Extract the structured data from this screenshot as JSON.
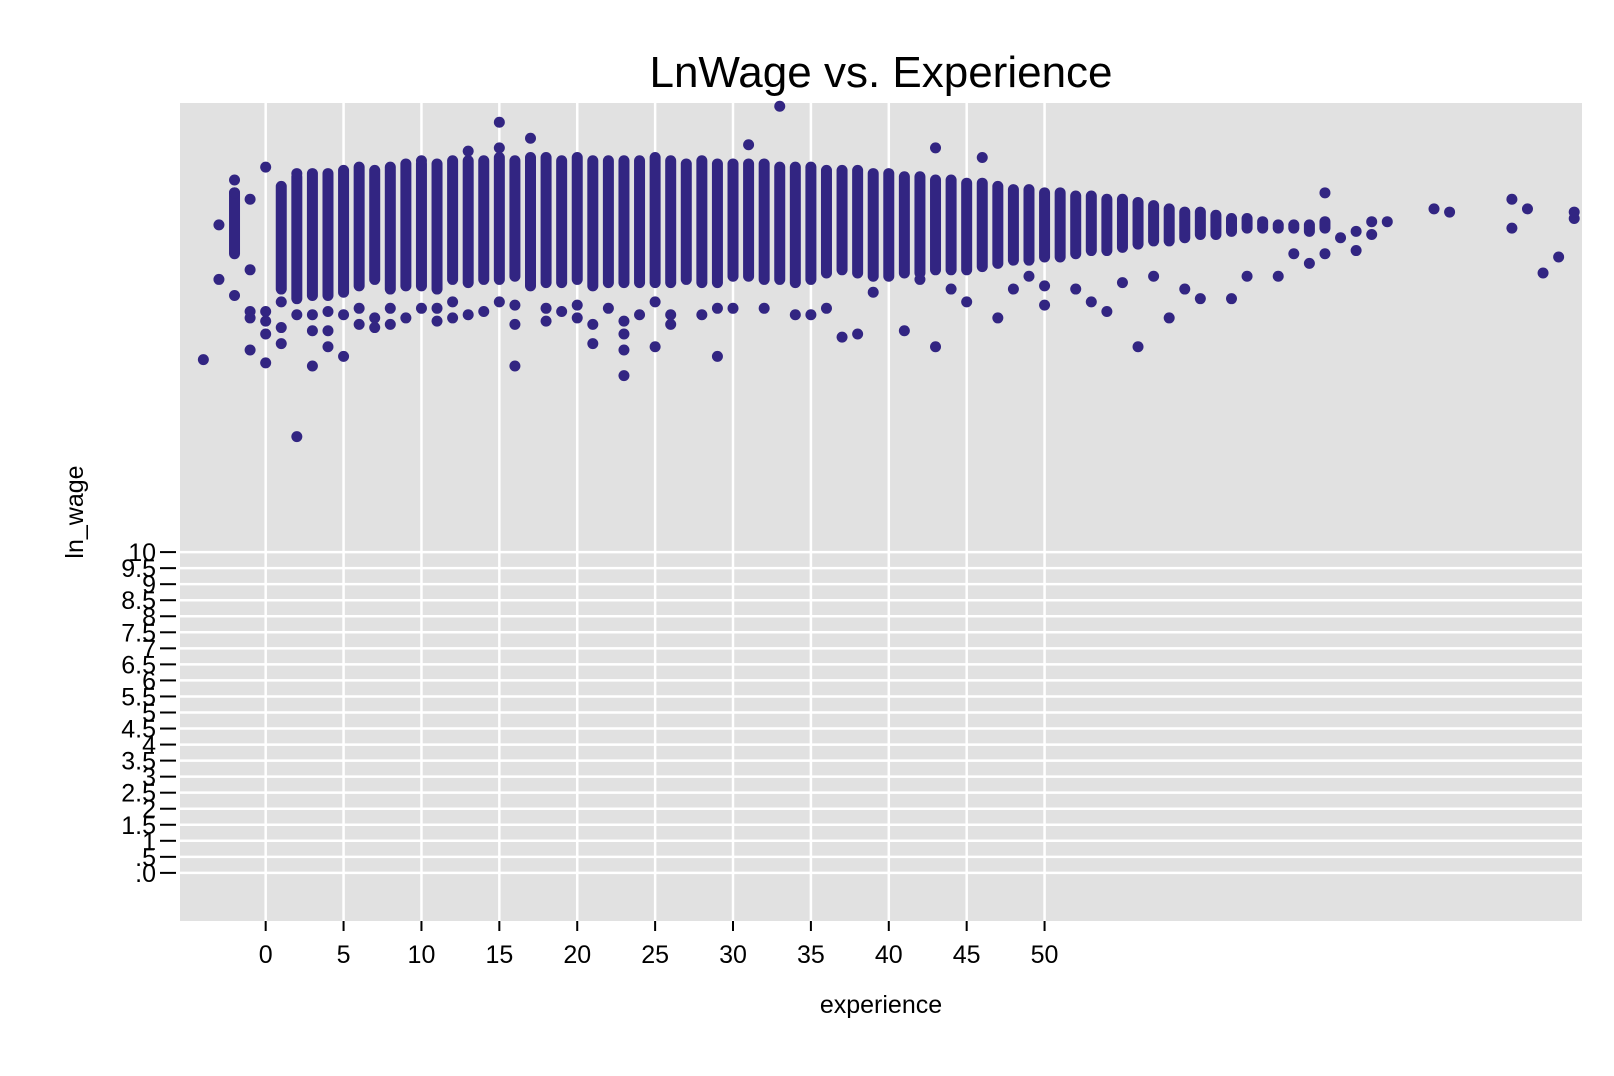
{
  "chart_data": {
    "type": "scatter",
    "title": "LnWage vs. Experience",
    "xlabel": "experience",
    "ylabel": "ln_wage",
    "xlim": [
      -5.5,
      84.5
    ],
    "ylim": [
      -1.5,
      24
    ],
    "y_axis_window": [
      0,
      10
    ],
    "xticks": [
      0,
      5,
      10,
      15,
      20,
      25,
      30,
      35,
      40,
      45,
      50
    ],
    "yticks": [
      0,
      0.5,
      1,
      1.5,
      2,
      2.5,
      3,
      3.5,
      4,
      4.5,
      5,
      5.5,
      6,
      6.5,
      7,
      7.5,
      8,
      8.5,
      9,
      9.5,
      10
    ],
    "ytick_labels": [
      ".0",
      ".5",
      "1",
      "1.5",
      "2",
      "2.5",
      "3",
      "3.5",
      "4",
      "4.5",
      "5",
      "5.5",
      "6",
      "6.5",
      "7",
      "7.5",
      "8",
      "8.5",
      "9",
      "9.5",
      "10"
    ],
    "grid": true,
    "marker_color": "#322582",
    "background_color": "#e1e1e1",
    "band_x": [
      -2,
      1,
      2,
      3,
      4,
      5,
      6,
      7,
      8,
      9,
      10,
      11,
      12,
      13,
      14,
      15,
      16,
      17,
      18,
      19,
      20,
      21,
      22,
      23,
      24,
      25,
      26,
      27,
      28,
      29,
      30,
      31,
      32,
      33,
      34,
      35,
      36,
      37,
      38,
      39,
      40,
      41,
      42,
      43,
      44,
      45,
      46,
      47,
      48,
      49,
      50,
      51,
      52,
      53,
      54,
      55,
      56,
      57,
      58,
      59,
      60,
      61,
      62,
      63,
      64,
      65,
      66,
      67,
      68
    ],
    "band_lo": [
      19.3,
      18.2,
      17.9,
      18.0,
      18.0,
      18.1,
      18.3,
      18.5,
      18.2,
      18.3,
      18.3,
      18.2,
      18.5,
      18.4,
      18.5,
      18.5,
      18.6,
      18.3,
      18.4,
      18.4,
      18.5,
      18.3,
      18.4,
      18.4,
      18.4,
      18.4,
      18.4,
      18.5,
      18.4,
      18.4,
      18.6,
      18.6,
      18.5,
      18.5,
      18.4,
      18.5,
      18.7,
      18.8,
      18.7,
      18.6,
      18.6,
      18.7,
      18.7,
      18.8,
      18.8,
      18.8,
      18.9,
      19.0,
      19.1,
      19.1,
      19.2,
      19.2,
      19.3,
      19.4,
      19.4,
      19.5,
      19.6,
      19.7,
      19.7,
      19.8,
      19.9,
      19.9,
      20.0,
      20.1,
      20.1,
      20.1,
      20.2,
      20.2,
      20.3
    ],
    "band_hi": [
      21.2,
      21.4,
      21.7,
      21.8,
      21.8,
      21.9,
      22.0,
      21.9,
      22.0,
      22.1,
      22.1,
      22.1,
      22.2,
      22.2,
      22.2,
      22.3,
      22.2,
      22.3,
      22.3,
      22.2,
      22.3,
      22.2,
      22.2,
      22.2,
      22.2,
      22.3,
      22.2,
      22.1,
      22.2,
      22.1,
      22.1,
      22.1,
      22.1,
      22.0,
      22.0,
      22.0,
      21.9,
      21.9,
      21.9,
      21.8,
      21.8,
      21.7,
      21.7,
      21.6,
      21.6,
      21.5,
      21.5,
      21.4,
      21.3,
      21.3,
      21.2,
      21.2,
      21.1,
      21.1,
      21.0,
      21.0,
      20.9,
      20.8,
      20.7,
      20.6,
      20.6,
      20.5,
      20.4,
      20.4,
      20.3,
      20.2,
      20.1,
      20.0,
      20.1
    ],
    "points": [
      [
        -4,
        16.0
      ],
      [
        -3,
        18.5
      ],
      [
        -3,
        20.2
      ],
      [
        -2,
        18.0
      ],
      [
        -2,
        21.6
      ],
      [
        -2,
        21.2
      ],
      [
        -1,
        16.3
      ],
      [
        -1,
        17.5
      ],
      [
        -1,
        21.0
      ],
      [
        -1,
        18.8
      ],
      [
        -1,
        17.3
      ],
      [
        0,
        15.9
      ],
      [
        0,
        16.8
      ],
      [
        0,
        17.2
      ],
      [
        0,
        17.5
      ],
      [
        0,
        22.0
      ],
      [
        1,
        16.5
      ],
      [
        1,
        17.0
      ],
      [
        1,
        17.8
      ],
      [
        2,
        13.6
      ],
      [
        2,
        17.4
      ],
      [
        2,
        21.8
      ],
      [
        3,
        15.8
      ],
      [
        3,
        16.9
      ],
      [
        3,
        17.4
      ],
      [
        4,
        16.4
      ],
      [
        4,
        16.9
      ],
      [
        4,
        17.5
      ],
      [
        5,
        16.1
      ],
      [
        5,
        17.4
      ],
      [
        6,
        17.1
      ],
      [
        6,
        17.6
      ],
      [
        7,
        17.0
      ],
      [
        7,
        17.3
      ],
      [
        8,
        17.1
      ],
      [
        8,
        17.6
      ],
      [
        9,
        17.3
      ],
      [
        10,
        17.6
      ],
      [
        10,
        22.2
      ],
      [
        11,
        17.2
      ],
      [
        11,
        17.6
      ],
      [
        12,
        17.3
      ],
      [
        12,
        17.8
      ],
      [
        13,
        17.4
      ],
      [
        13,
        22.5
      ],
      [
        14,
        17.5
      ],
      [
        15,
        17.8
      ],
      [
        15,
        23.4
      ],
      [
        15,
        22.6
      ],
      [
        16,
        15.8
      ],
      [
        16,
        17.1
      ],
      [
        16,
        17.7
      ],
      [
        17,
        22.9
      ],
      [
        18,
        17.2
      ],
      [
        18,
        17.6
      ],
      [
        19,
        17.5
      ],
      [
        20,
        17.3
      ],
      [
        20,
        17.7
      ],
      [
        21,
        17.1
      ],
      [
        21,
        16.5
      ],
      [
        22,
        17.6
      ],
      [
        23,
        15.5
      ],
      [
        23,
        16.3
      ],
      [
        23,
        16.8
      ],
      [
        23,
        17.2
      ],
      [
        24,
        17.4
      ],
      [
        25,
        16.4
      ],
      [
        25,
        17.8
      ],
      [
        26,
        17.1
      ],
      [
        26,
        17.4
      ],
      [
        28,
        17.4
      ],
      [
        29,
        16.1
      ],
      [
        29,
        17.6
      ],
      [
        30,
        17.6
      ],
      [
        31,
        22.7
      ],
      [
        32,
        17.6
      ],
      [
        33,
        23.9
      ],
      [
        34,
        17.4
      ],
      [
        35,
        17.4
      ],
      [
        36,
        17.6
      ],
      [
        37,
        16.7
      ],
      [
        38,
        16.8
      ],
      [
        39,
        18.1
      ],
      [
        41,
        16.9
      ],
      [
        42,
        18.5
      ],
      [
        43,
        16.4
      ],
      [
        43,
        22.6
      ],
      [
        44,
        18.2
      ],
      [
        45,
        17.8
      ],
      [
        46,
        22.3
      ],
      [
        47,
        17.3
      ],
      [
        48,
        18.2
      ],
      [
        49,
        18.6
      ],
      [
        50,
        17.7
      ],
      [
        50,
        18.3
      ],
      [
        52,
        18.2
      ],
      [
        53,
        17.8
      ],
      [
        54,
        17.5
      ],
      [
        55,
        18.4
      ],
      [
        56,
        16.4
      ],
      [
        57,
        18.6
      ],
      [
        58,
        17.3
      ],
      [
        59,
        18.2
      ],
      [
        60,
        17.9
      ],
      [
        62,
        17.9
      ],
      [
        63,
        18.6
      ],
      [
        65,
        18.6
      ],
      [
        66,
        19.3
      ],
      [
        67,
        19.0
      ],
      [
        68,
        19.3
      ],
      [
        68,
        21.2
      ],
      [
        69,
        19.8
      ],
      [
        70,
        20.0
      ],
      [
        71,
        20.3
      ],
      [
        72,
        20.3
      ],
      [
        75,
        20.7
      ],
      [
        76,
        20.6
      ],
      [
        80,
        20.1
      ],
      [
        80,
        21.0
      ],
      [
        81,
        20.7
      ],
      [
        83,
        19.2
      ],
      [
        84,
        20.4
      ],
      [
        84,
        20.6
      ],
      [
        82,
        18.7
      ],
      [
        71,
        19.9
      ],
      [
        70,
        19.4
      ]
    ]
  }
}
